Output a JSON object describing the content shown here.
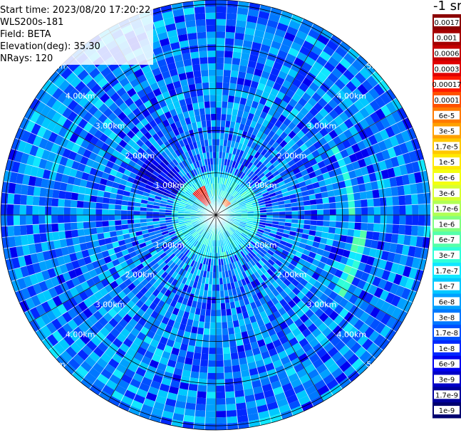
{
  "header": {
    "start_time": "Start time: 2023/08/20 17:20:22",
    "instrument": "WLS200s-181",
    "field": "Field: BETA",
    "elevation": "Elevation(deg): 35.30",
    "nrays": "NRays: 120"
  },
  "colorbar": {
    "title": "-1 sr",
    "labels": [
      "0.0017",
      "0.001",
      "0.0006",
      "0.0003",
      "0.00017",
      "0.0001",
      "6e-5",
      "3e-5",
      "1.7e-5",
      "1e-5",
      "6e-6",
      "3e-6",
      "1.7e-6",
      "1e-6",
      "6e-7",
      "3e-7",
      "1.7e-7",
      "1e-7",
      "6e-8",
      "3e-8",
      "1.7e-8",
      "1e-8",
      "6e-9",
      "3e-9",
      "1.7e-9",
      "1e-9"
    ],
    "colors": [
      "#8b0000",
      "#a50000",
      "#c40000",
      "#e00000",
      "#ff1a00",
      "#ff5000",
      "#ff7a00",
      "#ffa000",
      "#ffc800",
      "#ffe800",
      "#f4ff10",
      "#d8ff30",
      "#b0ff55",
      "#80ff80",
      "#55ffaa",
      "#30ffd8",
      "#10e8ff",
      "#00c8ff",
      "#00a0ff",
      "#0078ff",
      "#0050ff",
      "#0028ff",
      "#0000f0",
      "#0000c8",
      "#00009c",
      "#000070"
    ]
  },
  "chart_data": {
    "type": "heatmap",
    "projection": "polar (PPI scan)",
    "range_ring_labels": [
      "1.00km",
      "2.00km",
      "3.00km",
      "4.00km",
      "5.00km"
    ],
    "range_ring_values_km": [
      1,
      2,
      3,
      4,
      5
    ],
    "max_range_km": 5.1,
    "colorscale": "log",
    "value_range": [
      1e-09,
      0.0017
    ],
    "features": [
      {
        "azimuth_deg": 325,
        "range_km": [
          0.3,
          0.7
        ],
        "value": 0.0003
      },
      {
        "azimuth_deg": 40,
        "range_km": [
          0.25,
          0.45
        ],
        "value": 0.0001
      },
      {
        "azimuth_deg": 305,
        "range_km": [
          1.0,
          2.0
        ],
        "value": 5e-09
      },
      {
        "azimuth_deg": 75,
        "range_km": [
          3.2,
          3.3
        ],
        "value": 3e-07
      },
      {
        "azimuth_deg": 110,
        "range_km": [
          3.3,
          3.5
        ],
        "value": 3e-07
      }
    ],
    "background_value": 3e-08,
    "near_range_value": 1.7e-07
  }
}
